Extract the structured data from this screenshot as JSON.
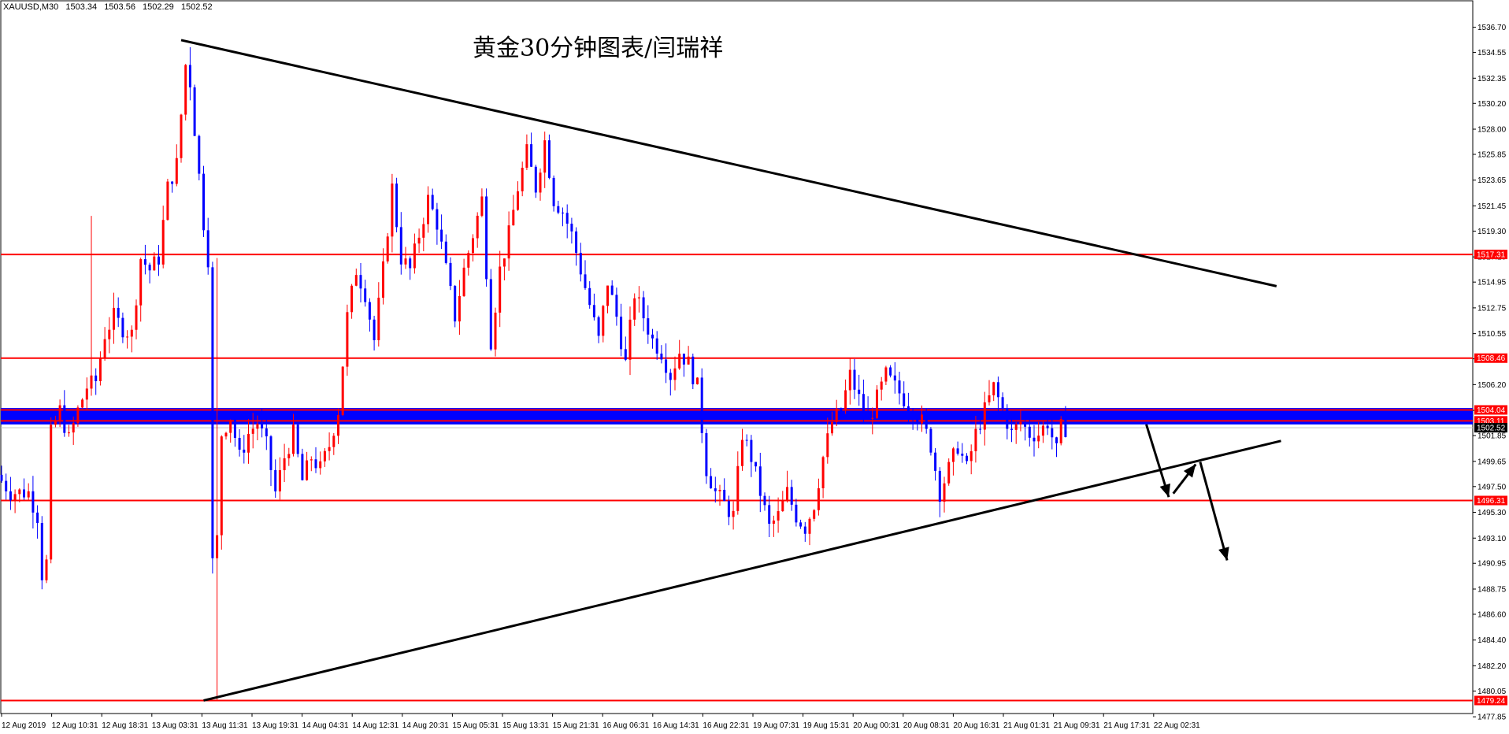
{
  "chart_header": {
    "symbol": "XAUUSD,M30",
    "open": "1503.34",
    "high": "1503.56",
    "low": "1502.29",
    "close": "1502.52"
  },
  "chart_data": {
    "type": "candlestick",
    "title": "黄金30分钟图表/闫瑞祥",
    "xlabel": "",
    "ylabel": "",
    "ylim": [
      1477.86,
      1537.68
    ],
    "grid": false,
    "colors": {
      "bull": "#ff0000",
      "bear": "#0000ff",
      "level": "#ff0000",
      "trend": "#000000",
      "band": "#0000ff",
      "price_tag": "#000000"
    },
    "y_ticks": [
      "1536.70",
      "1534.55",
      "1532.35",
      "1530.20",
      "1528.00",
      "1525.85",
      "1523.65",
      "1521.45",
      "1519.30",
      "1517.10",
      "1514.95",
      "1512.75",
      "1510.55",
      "1508.40",
      "1506.20",
      "1504.00",
      "1501.85",
      "1499.65",
      "1497.50",
      "1495.30",
      "1493.10",
      "1490.95",
      "1488.75",
      "1486.60",
      "1484.40",
      "1482.20",
      "1480.05",
      "1477.85"
    ],
    "x_ticks": [
      "12 Aug 2019",
      "12 Aug 10:31",
      "12 Aug 18:31",
      "13 Aug 03:31",
      "13 Aug 11:31",
      "13 Aug 19:31",
      "14 Aug 04:31",
      "14 Aug 12:31",
      "14 Aug 20:31",
      "15 Aug 05:31",
      "15 Aug 13:31",
      "15 Aug 21:31",
      "16 Aug 06:31",
      "16 Aug 14:31",
      "16 Aug 22:31",
      "19 Aug 07:31",
      "19 Aug 15:31",
      "20 Aug 00:31",
      "20 Aug 08:31",
      "20 Aug 16:31",
      "21 Aug 01:31",
      "21 Aug 09:31",
      "21 Aug 17:31",
      "22 Aug 02:31"
    ],
    "horizontal_levels": [
      {
        "value": 1517.31,
        "label": "1517.31"
      },
      {
        "value": 1508.46,
        "label": "1508.46"
      },
      {
        "value": 1504.04,
        "label": "1504.04"
      },
      {
        "value": 1503.11,
        "label": "1503.11"
      },
      {
        "value": 1496.31,
        "label": "1496.31"
      },
      {
        "value": 1479.24,
        "label": "1479.24"
      }
    ],
    "current_price": {
      "value": 1502.52,
      "label": "1502.52"
    },
    "band": {
      "low": 1503.0,
      "high": 1504.0
    },
    "trendlines": [
      {
        "name": "upper",
        "from": {
          "i": 40,
          "y": 1535.6
        },
        "to": {
          "i": 284,
          "y": 1514.6
        }
      },
      {
        "name": "lower",
        "from": {
          "i": 45,
          "y": 1479.24
        },
        "to": {
          "i": 285,
          "y": 1501.4
        }
      }
    ],
    "arrows": [
      {
        "from": {
          "i": 255,
          "y": 1502.8
        },
        "to": {
          "i": 260,
          "y": 1496.6
        }
      },
      {
        "from": {
          "i": 261,
          "y": 1496.9
        },
        "to": {
          "i": 266,
          "y": 1499.4
        }
      },
      {
        "from": {
          "i": 267,
          "y": 1499.6
        },
        "to": {
          "i": 273,
          "y": 1491.2
        }
      }
    ],
    "candle_count": 258,
    "series": [
      {
        "name": "",
        "anchors": [
          [
            0,
            1498.5
          ],
          [
            3,
            1497.0
          ],
          [
            7,
            1497.0
          ],
          [
            9,
            1495.0
          ],
          [
            10,
            1490.0
          ],
          [
            11,
            1491.0
          ],
          [
            12,
            1502.0
          ],
          [
            14,
            1504.0
          ],
          [
            16,
            1501.5
          ],
          [
            18,
            1504.0
          ],
          [
            20,
            1506.0
          ],
          [
            22,
            1506.5
          ],
          [
            24,
            1510.5
          ],
          [
            26,
            1512.0
          ],
          [
            28,
            1511.0
          ],
          [
            30,
            1510.5
          ],
          [
            32,
            1517.0
          ],
          [
            34,
            1516.0
          ],
          [
            36,
            1517.0
          ],
          [
            38,
            1523.0
          ],
          [
            40,
            1525.0
          ],
          [
            42,
            1533.5
          ],
          [
            43,
            1532.0
          ],
          [
            45,
            1524.0
          ],
          [
            46,
            1520.0
          ],
          [
            47,
            1517.0
          ],
          [
            48,
            1491.0
          ],
          [
            49,
            1493.0
          ],
          [
            50,
            1502.0
          ],
          [
            52,
            1503.5
          ],
          [
            54,
            1500.0
          ],
          [
            56,
            1502.0
          ],
          [
            58,
            1503.0
          ],
          [
            60,
            1501.0
          ],
          [
            62,
            1497.0
          ],
          [
            64,
            1500.0
          ],
          [
            66,
            1502.0
          ],
          [
            68,
            1498.0
          ],
          [
            70,
            1500.0
          ],
          [
            72,
            1499.0
          ],
          [
            74,
            1501.0
          ],
          [
            76,
            1504.0
          ],
          [
            78,
            1512.0
          ],
          [
            80,
            1516.0
          ],
          [
            82,
            1514.0
          ],
          [
            84,
            1510.0
          ],
          [
            86,
            1516.0
          ],
          [
            88,
            1523.0
          ],
          [
            90,
            1517.0
          ],
          [
            92,
            1516.0
          ],
          [
            94,
            1519.0
          ],
          [
            96,
            1522.0
          ],
          [
            98,
            1520.0
          ],
          [
            100,
            1516.0
          ],
          [
            102,
            1512.0
          ],
          [
            104,
            1516.0
          ],
          [
            106,
            1519.0
          ],
          [
            108,
            1522.0
          ],
          [
            110,
            1510.0
          ],
          [
            112,
            1516.0
          ],
          [
            114,
            1519.0
          ],
          [
            116,
            1523.0
          ],
          [
            118,
            1526.0
          ],
          [
            120,
            1523.0
          ],
          [
            122,
            1527.0
          ],
          [
            124,
            1522.0
          ],
          [
            126,
            1521.0
          ],
          [
            128,
            1519.0
          ],
          [
            130,
            1516.0
          ],
          [
            132,
            1513.0
          ],
          [
            134,
            1510.0
          ],
          [
            136,
            1515.0
          ],
          [
            138,
            1512.0
          ],
          [
            140,
            1508.0
          ],
          [
            142,
            1514.0
          ],
          [
            144,
            1512.0
          ],
          [
            146,
            1510.0
          ],
          [
            148,
            1509.0
          ],
          [
            150,
            1507.0
          ],
          [
            152,
            1509.0
          ],
          [
            154,
            1508.0
          ],
          [
            156,
            1506.0
          ],
          [
            158,
            1499.0
          ],
          [
            160,
            1497.0
          ],
          [
            162,
            1496.0
          ],
          [
            164,
            1495.0
          ],
          [
            166,
            1502.0
          ],
          [
            168,
            1500.0
          ],
          [
            170,
            1497.0
          ],
          [
            172,
            1494.0
          ],
          [
            174,
            1495.0
          ],
          [
            176,
            1497.0
          ],
          [
            178,
            1495.0
          ],
          [
            180,
            1494.0
          ],
          [
            182,
            1496.0
          ],
          [
            184,
            1500.0
          ],
          [
            186,
            1503.0
          ],
          [
            188,
            1504.0
          ],
          [
            190,
            1507.0
          ],
          [
            192,
            1505.0
          ],
          [
            194,
            1503.0
          ],
          [
            196,
            1505.0
          ],
          [
            198,
            1507.0
          ],
          [
            200,
            1506.0
          ],
          [
            202,
            1505.0
          ],
          [
            204,
            1504.0
          ],
          [
            206,
            1503.0
          ],
          [
            208,
            1501.0
          ],
          [
            210,
            1497.0
          ],
          [
            212,
            1499.0
          ],
          [
            214,
            1501.0
          ],
          [
            216,
            1499.0
          ],
          [
            218,
            1502.0
          ],
          [
            220,
            1504.0
          ],
          [
            222,
            1506.0
          ],
          [
            224,
            1504.0
          ],
          [
            226,
            1502.0
          ],
          [
            228,
            1503.0
          ],
          [
            230,
            1502.0
          ],
          [
            232,
            1502.0
          ],
          [
            234,
            1503.0
          ],
          [
            236,
            1500.5
          ],
          [
            237,
            1502.5
          ]
        ]
      }
    ]
  }
}
